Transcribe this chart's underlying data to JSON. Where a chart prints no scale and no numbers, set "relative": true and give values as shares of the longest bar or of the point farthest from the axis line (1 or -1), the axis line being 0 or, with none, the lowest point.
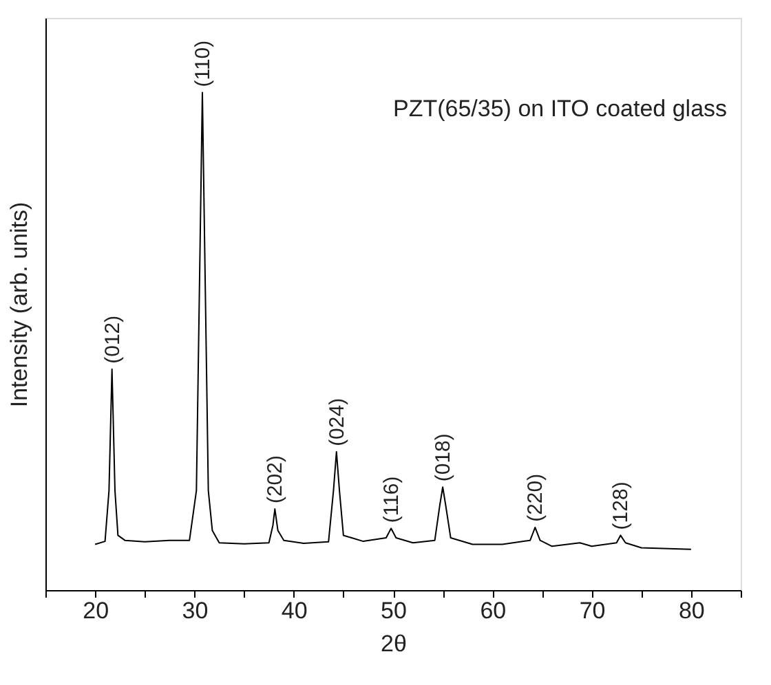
{
  "chart_data": {
    "type": "line",
    "relative": true,
    "xlabel": "2θ",
    "ylabel": "Intensity (arb. units)",
    "xlim": [
      15,
      85
    ],
    "xticks": [
      {
        "value": 15,
        "label": null
      },
      20,
      {
        "value": 25,
        "label": null
      },
      30,
      {
        "value": 35,
        "label": null
      },
      40,
      {
        "value": 45,
        "label": null
      },
      50,
      {
        "value": 55,
        "label": null
      },
      60,
      {
        "value": 65,
        "label": null
      },
      70,
      {
        "value": 75,
        "label": null
      },
      80,
      {
        "value": 85,
        "label": null
      }
    ],
    "grid": false,
    "marker": "none",
    "line_style": "solid",
    "series": [
      {
        "color": "#000000",
        "x": [
          20.0,
          21.0,
          21.4,
          21.7,
          22.0,
          22.3,
          23,
          25,
          27.5,
          29.5,
          30.2,
          30.5,
          30.8,
          31.1,
          31.4,
          31.8,
          32.5,
          35,
          37.5,
          37.9,
          38.1,
          38.4,
          39,
          41,
          43.5,
          44.0,
          44.3,
          44.6,
          45,
          47,
          49.3,
          49.8,
          50.3,
          52,
          54.2,
          54.7,
          55.0,
          55.3,
          55.8,
          58,
          61,
          63.8,
          64.3,
          64.8,
          66,
          68.8,
          70,
          72.5,
          72.9,
          73.4,
          75,
          80
        ],
        "values": [
          0.092,
          0.098,
          0.2,
          0.444,
          0.2,
          0.11,
          0.1,
          0.097,
          0.1,
          0.1,
          0.2,
          0.6,
          1.0,
          0.6,
          0.2,
          0.12,
          0.095,
          0.093,
          0.095,
          0.13,
          0.163,
          0.12,
          0.1,
          0.094,
          0.097,
          0.2,
          0.278,
          0.2,
          0.11,
          0.098,
          0.105,
          0.124,
          0.105,
          0.095,
          0.1,
          0.17,
          0.207,
          0.17,
          0.105,
          0.092,
          0.092,
          0.1,
          0.126,
          0.1,
          0.088,
          0.095,
          0.088,
          0.095,
          0.11,
          0.095,
          0.085,
          0.082
        ]
      }
    ],
    "annotations": [
      {
        "text": "(012)",
        "x": 21.7,
        "y": 0.444
      },
      {
        "text": "(110)",
        "x": 30.8,
        "y": 1.0
      },
      {
        "text": "(202)",
        "x": 38.1,
        "y": 0.163
      },
      {
        "text": "(024)",
        "x": 44.3,
        "y": 0.278
      },
      {
        "text": "(116)",
        "x": 49.8,
        "y": 0.124
      },
      {
        "text": "(018)",
        "x": 55.0,
        "y": 0.207
      },
      {
        "text": "(220)",
        "x": 64.3,
        "y": 0.126
      },
      {
        "text": "(128)",
        "x": 72.9,
        "y": 0.11
      },
      "PZT(65/35) on ITO coated glass"
    ]
  }
}
